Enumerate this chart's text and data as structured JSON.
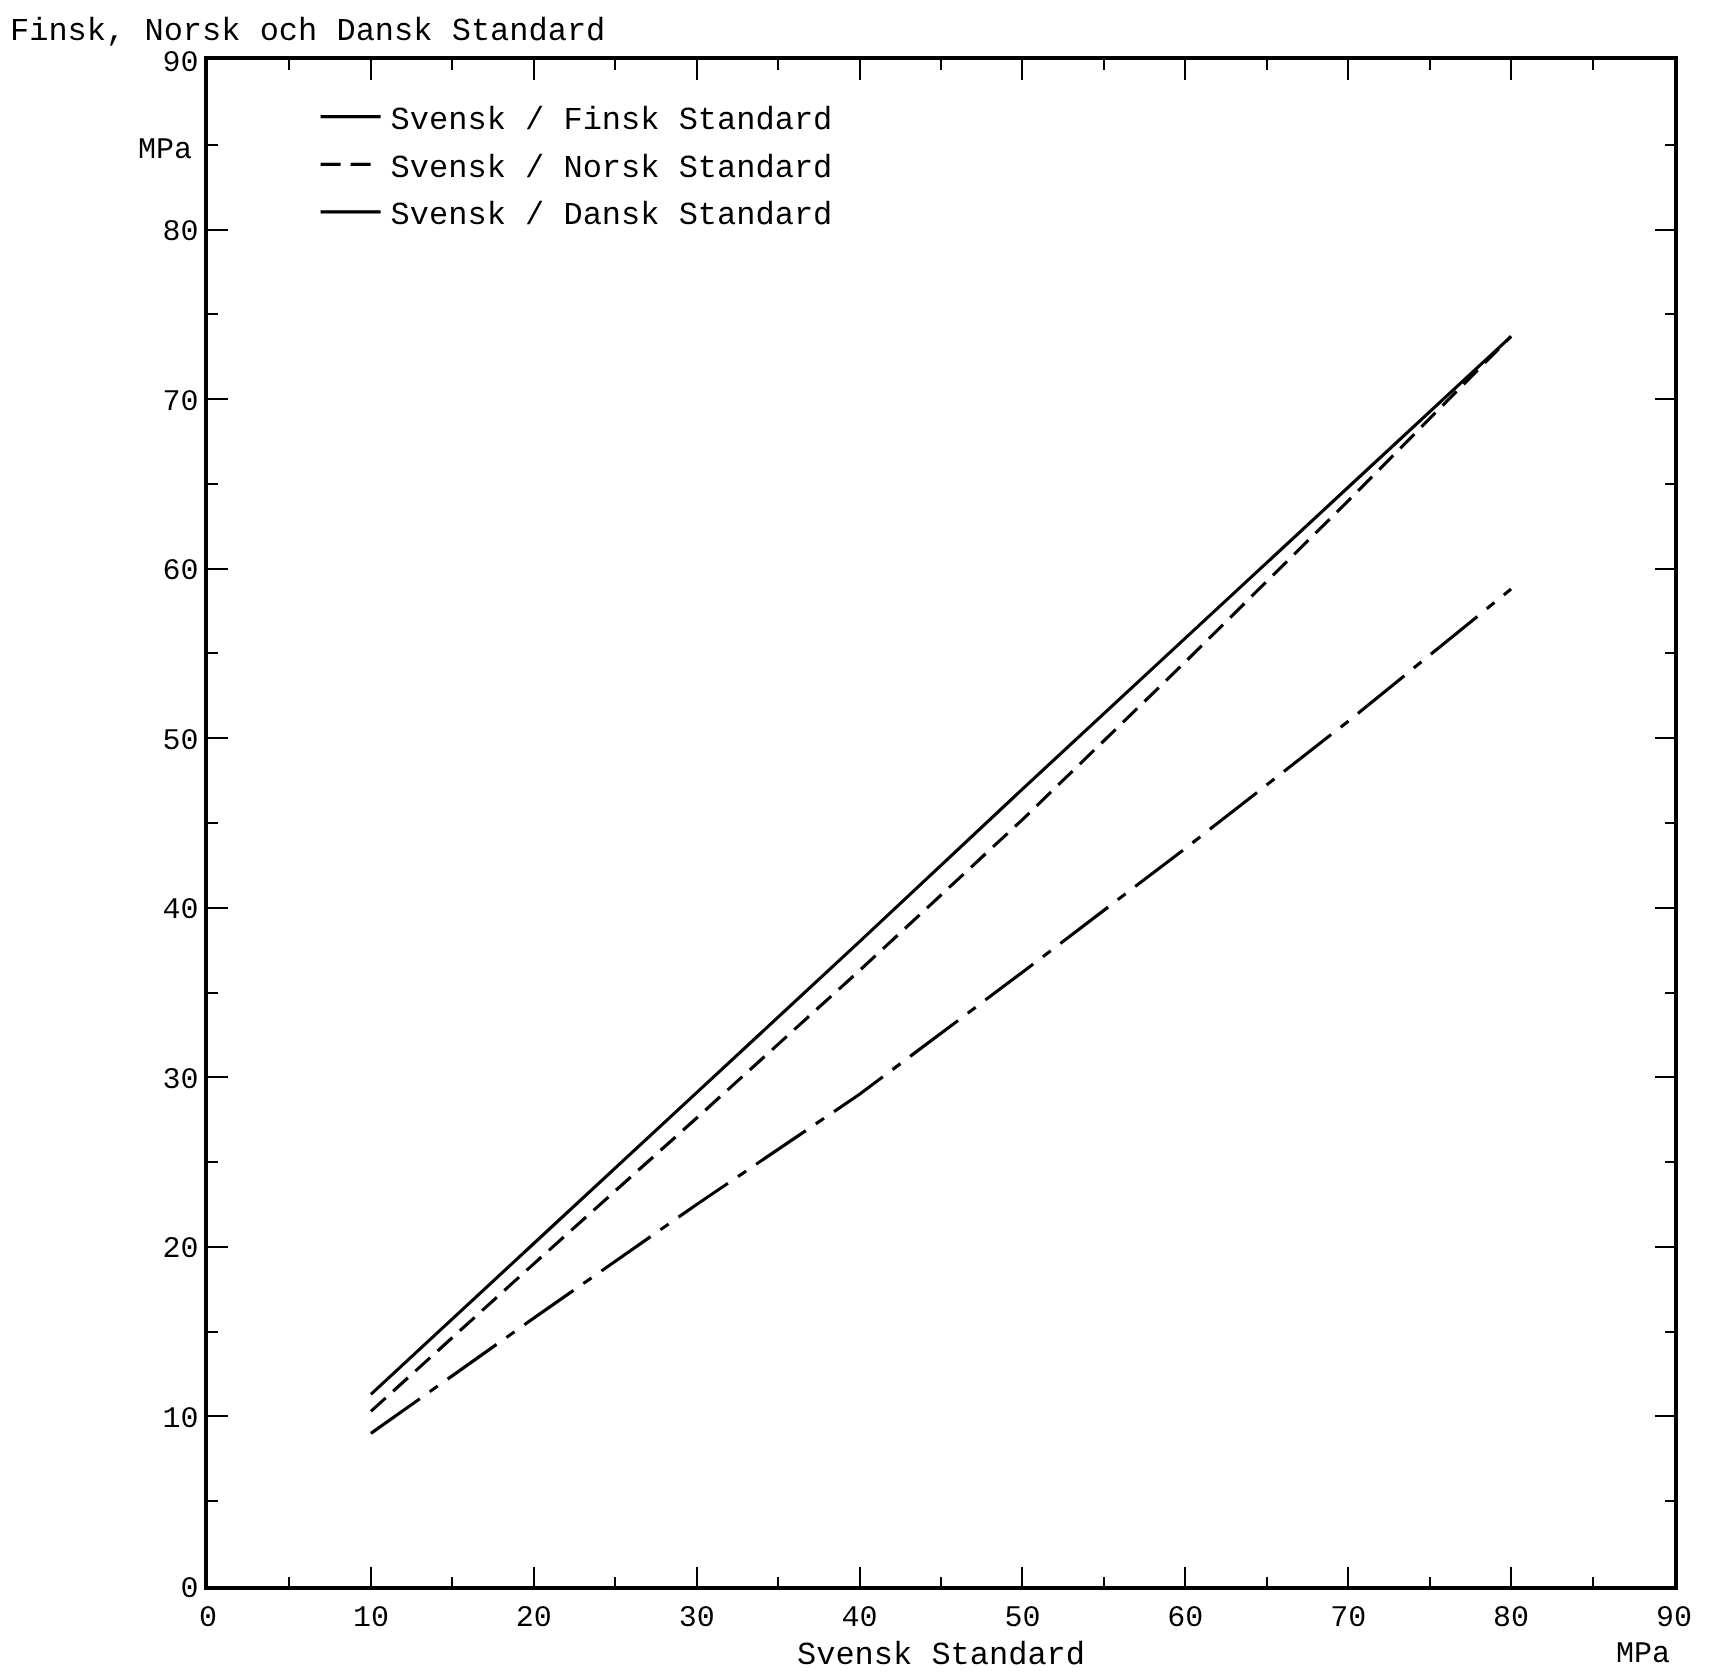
{
  "chart_data": {
    "type": "line",
    "ylabel": "Finsk, Norsk och Dansk Standard",
    "xlabel": "Svensk Standard",
    "annotations": [
      "MPa",
      "MPa"
    ],
    "x": [
      10,
      20,
      30,
      40,
      50,
      60,
      70,
      80
    ],
    "series": [
      {
        "name": "Svensk / Finsk Standard",
        "color": "#000000",
        "line_style": "solid",
        "values": [
          11.3,
          20.2,
          29.1,
          38.0,
          47.0,
          55.9,
          64.8,
          73.7
        ]
      },
      {
        "name": "Svensk / Norsk Standard",
        "color": "#000000",
        "line_style": "dashed",
        "values": [
          10.3,
          19.0,
          27.6,
          36.3,
          45.2,
          54.5,
          64.0,
          73.7
        ]
      },
      {
        "name": "Svensk / Dansk Standard",
        "color": "#000000",
        "line_style": "dashdot",
        "values": [
          9.0,
          15.8,
          22.5,
          29.0,
          36.2,
          43.5,
          51.0,
          58.8
        ]
      }
    ],
    "xlim": [
      0,
      90
    ],
    "xticks": [
      0,
      10,
      20,
      30,
      40,
      50,
      60,
      70,
      80,
      90
    ],
    "ylim": [
      0,
      90
    ],
    "yticks": [
      0,
      10,
      20,
      30,
      40,
      50,
      60,
      70,
      80,
      90
    ],
    "grid": false,
    "legend": "top left",
    "marker": "none"
  }
}
